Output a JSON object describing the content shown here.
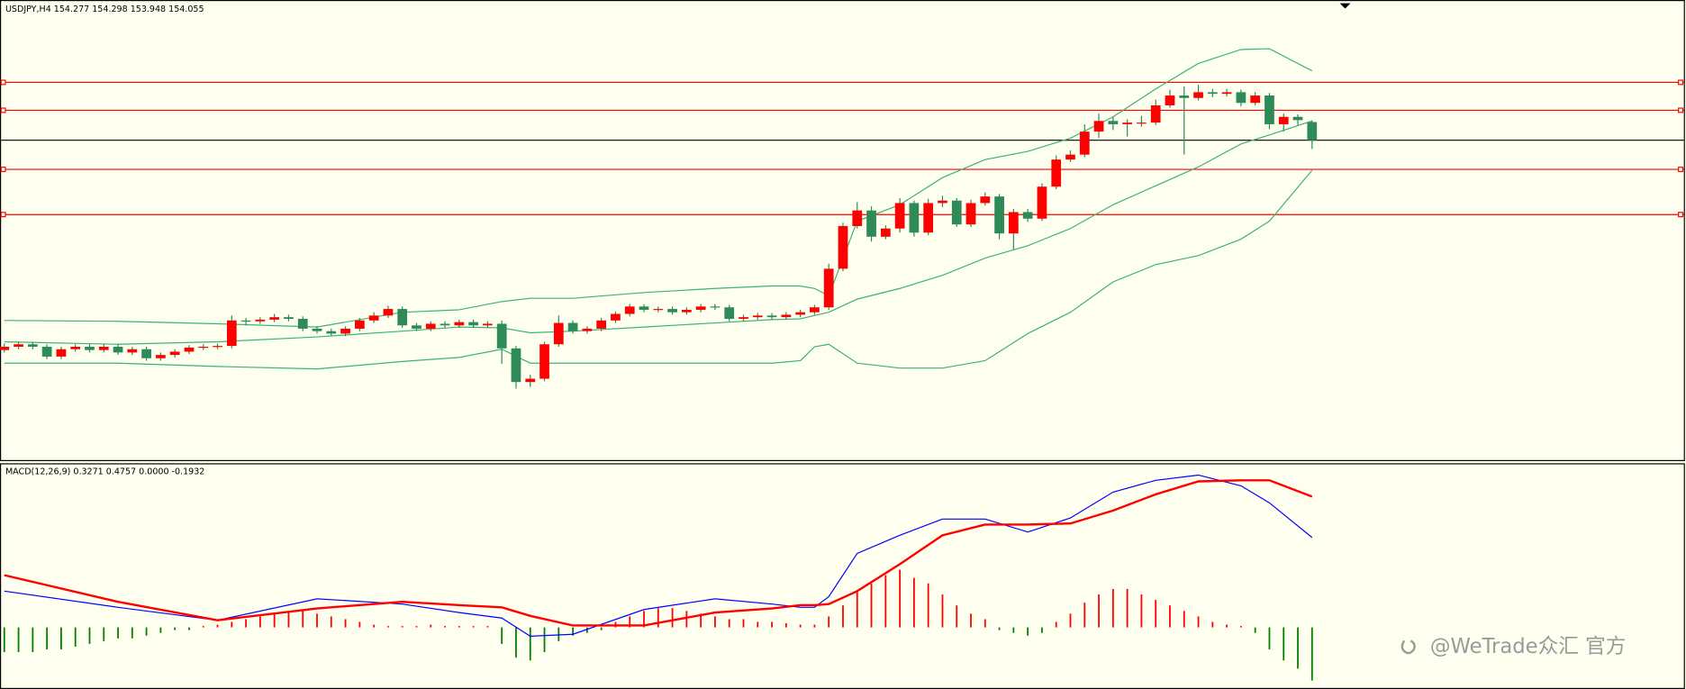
{
  "chart_data": [
    {
      "type": "candlestick",
      "title": "USDJPY,H4  154.277 154.298 153.948 154.055",
      "ylim": [
        150.16,
        155.75
      ],
      "up_color": "#ff0000",
      "down_color": "#2e8b57",
      "wick_color": "#2e8b57",
      "ohlc": [
        [
          151.5,
          151.58,
          151.47,
          151.54
        ],
        [
          151.54,
          151.6,
          151.51,
          151.57
        ],
        [
          151.57,
          151.6,
          151.51,
          151.54
        ],
        [
          151.54,
          151.57,
          151.39,
          151.42
        ],
        [
          151.42,
          151.54,
          151.39,
          151.51
        ],
        [
          151.51,
          151.57,
          151.48,
          151.54
        ],
        [
          151.54,
          151.57,
          151.47,
          151.5
        ],
        [
          151.5,
          151.57,
          151.47,
          151.54
        ],
        [
          151.54,
          151.57,
          151.44,
          151.47
        ],
        [
          151.47,
          151.54,
          151.44,
          151.51
        ],
        [
          151.51,
          151.54,
          151.37,
          151.4
        ],
        [
          151.4,
          151.47,
          151.37,
          151.44
        ],
        [
          151.44,
          151.51,
          151.41,
          151.48
        ],
        [
          151.48,
          151.56,
          151.45,
          151.53
        ],
        [
          151.53,
          151.57,
          151.5,
          151.54
        ],
        [
          151.54,
          151.58,
          151.51,
          151.55
        ],
        [
          151.55,
          151.92,
          151.52,
          151.86
        ],
        [
          151.86,
          151.89,
          151.8,
          151.85
        ],
        [
          151.85,
          151.9,
          151.82,
          151.87
        ],
        [
          151.87,
          151.94,
          151.84,
          151.9
        ],
        [
          151.9,
          151.93,
          151.85,
          151.88
        ],
        [
          151.88,
          151.91,
          151.73,
          151.76
        ],
        [
          151.76,
          151.79,
          151.7,
          151.73
        ],
        [
          151.73,
          151.76,
          151.67,
          151.7
        ],
        [
          151.7,
          151.79,
          151.67,
          151.76
        ],
        [
          151.76,
          151.89,
          151.73,
          151.86
        ],
        [
          151.86,
          151.96,
          151.83,
          151.92
        ],
        [
          151.92,
          152.04,
          151.89,
          152.0
        ],
        [
          152.0,
          152.03,
          151.77,
          151.8
        ],
        [
          151.8,
          151.83,
          151.73,
          151.76
        ],
        [
          151.76,
          151.85,
          151.73,
          151.82
        ],
        [
          151.82,
          151.85,
          151.77,
          151.8
        ],
        [
          151.8,
          151.87,
          151.77,
          151.84
        ],
        [
          151.84,
          151.87,
          151.77,
          151.8
        ],
        [
          151.8,
          151.85,
          151.77,
          151.82
        ],
        [
          151.82,
          151.86,
          151.33,
          151.52
        ],
        [
          151.52,
          151.55,
          151.03,
          151.11
        ],
        [
          151.11,
          151.2,
          151.05,
          151.15
        ],
        [
          151.15,
          151.6,
          151.12,
          151.57
        ],
        [
          151.57,
          151.92,
          151.54,
          151.83
        ],
        [
          151.83,
          151.86,
          151.7,
          151.73
        ],
        [
          151.73,
          151.79,
          151.7,
          151.76
        ],
        [
          151.76,
          151.89,
          151.73,
          151.86
        ],
        [
          151.86,
          151.97,
          151.83,
          151.94
        ],
        [
          151.94,
          152.06,
          151.91,
          152.03
        ],
        [
          152.03,
          152.06,
          151.96,
          151.99
        ],
        [
          151.99,
          152.03,
          151.96,
          152.0
        ],
        [
          152.0,
          152.03,
          151.93,
          151.96
        ],
        [
          151.96,
          152.02,
          151.93,
          151.99
        ],
        [
          151.99,
          152.06,
          151.96,
          152.03
        ],
        [
          152.03,
          152.06,
          151.99,
          152.02
        ],
        [
          152.02,
          152.05,
          151.85,
          151.88
        ],
        [
          151.88,
          151.93,
          151.85,
          151.9
        ],
        [
          151.9,
          151.95,
          151.87,
          151.92
        ],
        [
          151.92,
          151.95,
          151.87,
          151.9
        ],
        [
          151.9,
          151.96,
          151.87,
          151.93
        ],
        [
          151.93,
          151.99,
          151.9,
          151.96
        ],
        [
          151.96,
          152.05,
          151.93,
          152.02
        ],
        [
          152.02,
          152.55,
          151.99,
          152.49
        ],
        [
          152.49,
          153.05,
          152.46,
          153.01
        ],
        [
          153.01,
          153.3,
          152.98,
          153.2
        ],
        [
          153.2,
          153.25,
          152.82,
          152.88
        ],
        [
          152.88,
          153.02,
          152.85,
          152.98
        ],
        [
          152.98,
          153.35,
          152.93,
          153.29
        ],
        [
          153.29,
          153.32,
          152.88,
          152.93
        ],
        [
          152.93,
          153.34,
          152.9,
          153.29
        ],
        [
          153.29,
          153.38,
          153.24,
          153.32
        ],
        [
          153.32,
          153.35,
          153.0,
          153.03
        ],
        [
          153.03,
          153.33,
          153.0,
          153.29
        ],
        [
          153.29,
          153.42,
          153.26,
          153.37
        ],
        [
          153.37,
          153.4,
          152.85,
          152.92
        ],
        [
          152.92,
          153.22,
          152.72,
          153.18
        ],
        [
          153.18,
          153.22,
          153.06,
          153.1
        ],
        [
          153.1,
          153.53,
          153.07,
          153.49
        ],
        [
          153.49,
          153.87,
          153.46,
          153.82
        ],
        [
          153.82,
          153.93,
          153.79,
          153.88
        ],
        [
          153.88,
          154.25,
          153.85,
          154.16
        ],
        [
          154.16,
          154.38,
          154.08,
          154.29
        ],
        [
          154.29,
          154.34,
          154.18,
          154.25
        ],
        [
          154.25,
          154.31,
          154.1,
          154.27
        ],
        [
          154.27,
          154.35,
          154.22,
          154.27
        ],
        [
          154.27,
          154.55,
          154.24,
          154.48
        ],
        [
          154.48,
          154.67,
          154.45,
          154.6
        ],
        [
          154.6,
          154.71,
          153.88,
          154.57
        ],
        [
          154.57,
          154.73,
          154.54,
          154.64
        ],
        [
          154.64,
          154.68,
          154.58,
          154.62
        ],
        [
          154.62,
          154.68,
          154.59,
          154.64
        ],
        [
          154.64,
          154.67,
          154.47,
          154.51
        ],
        [
          154.51,
          154.64,
          154.48,
          154.6
        ],
        [
          154.6,
          154.63,
          154.19,
          154.25
        ],
        [
          154.25,
          154.38,
          154.16,
          154.34
        ],
        [
          154.34,
          154.37,
          154.24,
          154.3
        ],
        [
          154.277,
          154.298,
          153.948,
          154.055
        ]
      ],
      "levels": [
        154.76,
        154.42,
        153.7,
        153.15
      ],
      "level_color": "#ff0000",
      "bid_color": "#000000",
      "x": [
        0,
        8,
        15,
        22,
        28,
        32,
        35,
        37,
        40,
        45,
        50,
        54,
        56,
        57,
        58,
        60,
        63,
        66,
        69,
        72,
        75,
        78,
        81,
        84,
        87,
        89,
        92
      ],
      "band_color": "#3cb371",
      "series": [
        {
          "color": "#3cb371",
          "values": [
            151.86,
            151.85,
            151.82,
            151.78,
            151.96,
            151.99,
            152.09,
            152.13,
            152.13,
            152.2,
            152.25,
            152.28,
            152.28,
            152.25,
            152.16,
            153.07,
            153.27,
            153.6,
            153.82,
            153.92,
            154.08,
            154.34,
            154.68,
            154.99,
            155.16,
            155.17,
            154.9
          ]
        },
        {
          "color": "#3cb371",
          "values": [
            151.6,
            151.57,
            151.6,
            151.66,
            151.73,
            151.78,
            151.77,
            151.71,
            151.73,
            151.78,
            151.83,
            151.87,
            151.88,
            151.92,
            151.96,
            152.12,
            152.25,
            152.41,
            152.62,
            152.77,
            152.98,
            153.27,
            153.5,
            153.73,
            154.01,
            154.12,
            154.29
          ]
        },
        {
          "color": "#3cb371",
          "values": [
            151.34,
            151.34,
            151.3,
            151.27,
            151.36,
            151.41,
            151.51,
            151.34,
            151.34,
            151.34,
            151.34,
            151.34,
            151.37,
            151.54,
            151.57,
            151.34,
            151.28,
            151.28,
            151.37,
            151.7,
            151.96,
            152.33,
            152.54,
            152.65,
            152.85,
            153.07,
            153.69
          ]
        }
      ]
    },
    {
      "type": "macd",
      "title": "MACD(12,26,9) 0.3271 0.4757 0.0000 -0.1932",
      "y2lim": [
        -0.224,
        0.593
      ],
      "up_color": "#ff0000",
      "down_color": "#008000",
      "histogram": [
        -0.09,
        -0.09,
        -0.09,
        -0.08,
        -0.08,
        -0.07,
        -0.06,
        -0.05,
        -0.04,
        -0.04,
        -0.03,
        -0.02,
        -0.01,
        -0.01,
        0.005,
        0.01,
        0.02,
        0.03,
        0.04,
        0.05,
        0.06,
        0.06,
        0.05,
        0.04,
        0.03,
        0.02,
        0.01,
        0.005,
        0.005,
        0.005,
        0.01,
        0.005,
        0.005,
        0.005,
        0.005,
        -0.06,
        -0.11,
        -0.12,
        -0.09,
        -0.05,
        -0.03,
        -0.02,
        -0.01,
        0.02,
        0.04,
        0.06,
        0.07,
        0.07,
        0.06,
        0.05,
        0.04,
        0.03,
        0.03,
        0.02,
        0.02,
        0.015,
        0.01,
        0.01,
        0.04,
        0.08,
        0.13,
        0.16,
        0.19,
        0.21,
        0.18,
        0.16,
        0.12,
        0.08,
        0.05,
        0.03,
        -0.01,
        -0.02,
        -0.03,
        -0.02,
        0.02,
        0.05,
        0.09,
        0.12,
        0.14,
        0.14,
        0.12,
        0.1,
        0.08,
        0.06,
        0.04,
        0.02,
        0.01,
        0.005,
        -0.02,
        -0.08,
        -0.12,
        -0.15,
        -0.1932
      ],
      "x": [
        0,
        8,
        15,
        22,
        28,
        32,
        35,
        37,
        40,
        45,
        50,
        54,
        56,
        57,
        58,
        60,
        63,
        66,
        69,
        72,
        75,
        78,
        81,
        84,
        87,
        89,
        92
      ],
      "series": [
        {
          "color": "#0000ff",
          "values": [
            0.132,
            0.073,
            0.026,
            0.104,
            0.085,
            0.054,
            0.034,
            -0.032,
            -0.025,
            0.065,
            0.104,
            0.085,
            0.073,
            0.073,
            0.112,
            0.269,
            0.335,
            0.394,
            0.394,
            0.347,
            0.398,
            0.492,
            0.535,
            0.554,
            0.515,
            0.453,
            0.3271
          ]
        },
        {
          "color": "#ff0000",
          "values": [
            0.19,
            0.093,
            0.026,
            0.069,
            0.093,
            0.081,
            0.073,
            0.042,
            0.007,
            0.007,
            0.054,
            0.069,
            0.081,
            0.081,
            0.085,
            0.132,
            0.23,
            0.335,
            0.374,
            0.374,
            0.378,
            0.425,
            0.484,
            0.531,
            0.535,
            0.535,
            0.4757
          ]
        }
      ]
    }
  ],
  "watermark": "@WeTrade众汇 官方"
}
